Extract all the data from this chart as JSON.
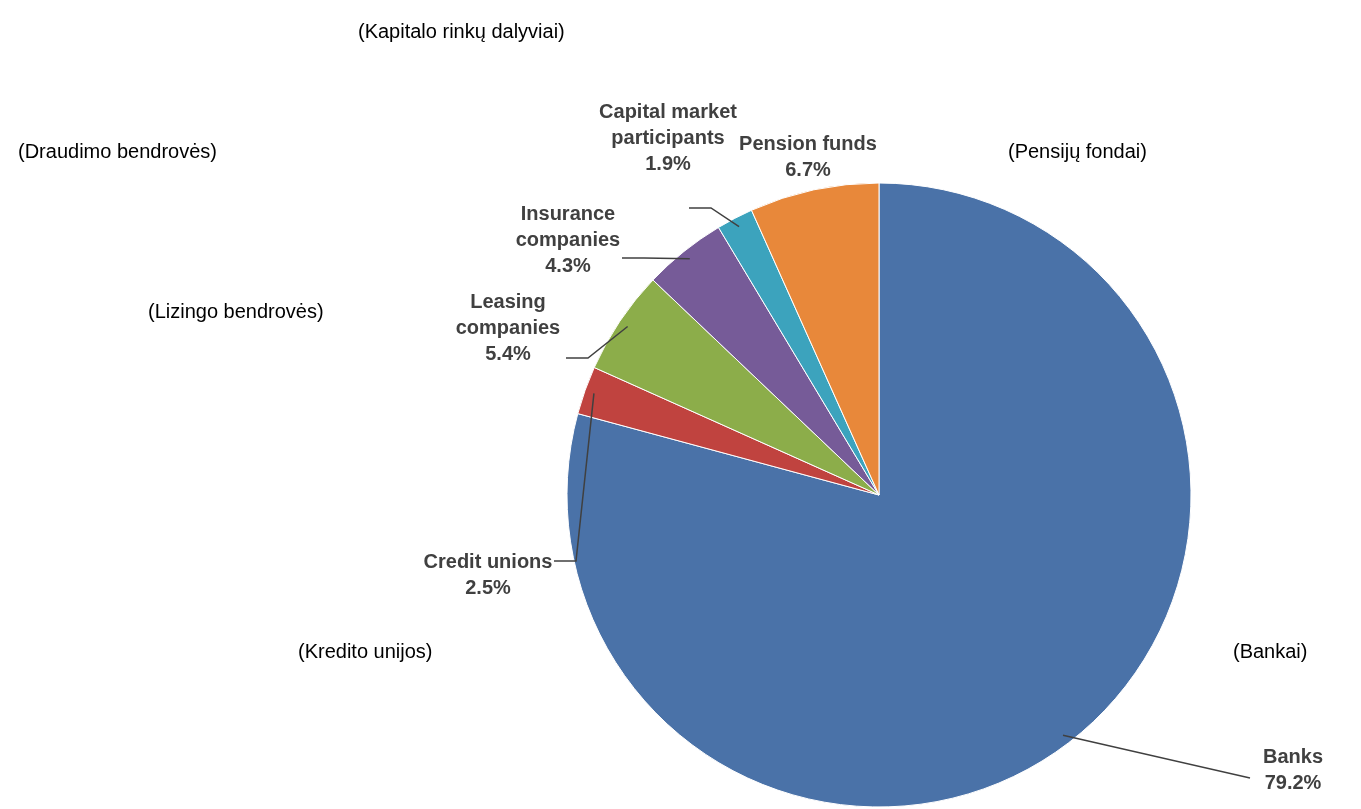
{
  "chart_data": {
    "type": "pie",
    "categories": [
      "Banks",
      "Credit unions",
      "Leasing companies",
      "Insurance companies",
      "Capital market participants",
      "Pension funds"
    ],
    "values": [
      79.2,
      2.5,
      5.4,
      4.3,
      1.9,
      6.7
    ],
    "value_labels": [
      "79.2%",
      "2.5%",
      "5.4%",
      "4.3%",
      "1.9%",
      "6.7%"
    ],
    "colors": [
      "#4a72a8",
      "#c0433f",
      "#8cad4a",
      "#765b98",
      "#3ca3bd",
      "#e8883a"
    ],
    "annotations": [
      "(Kapitalo rinkų dalyviai)",
      "(Draudimo bendrovės)",
      "(Pensijų fondai)",
      "(Lizingo bendrovės)",
      "(Kredito unijos)",
      "(Bankai)"
    ],
    "legend": false
  }
}
